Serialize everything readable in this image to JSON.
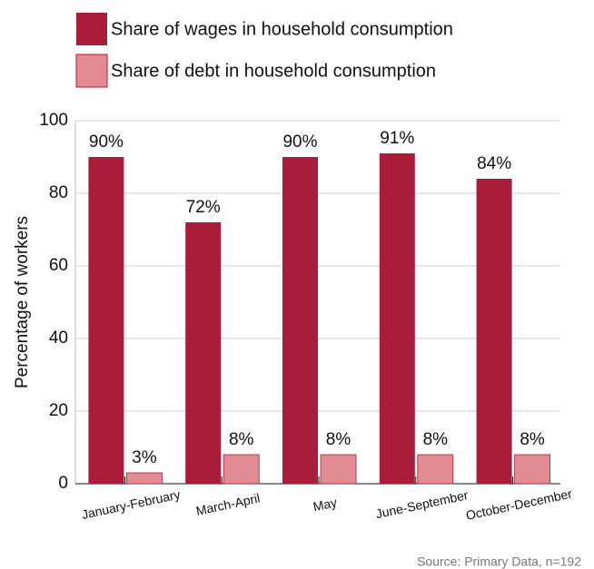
{
  "chart_data": {
    "type": "bar",
    "categories": [
      "January-February",
      "March-April",
      "May",
      "June-September",
      "October-December"
    ],
    "series": [
      {
        "name": "Share of wages in household consumption",
        "color": "#a91d3a",
        "values": [
          90,
          72,
          90,
          91,
          84
        ],
        "value_labels": [
          "90%",
          "72%",
          "90%",
          "91%",
          "84%"
        ]
      },
      {
        "name": "Share of debt in household consumption",
        "color": "#e38b92",
        "values": [
          3,
          8,
          8,
          8,
          8
        ],
        "value_labels": [
          "3%",
          "8%",
          "8%",
          "8%",
          "8%"
        ]
      }
    ],
    "ylabel": "Percentage of workers",
    "ylim": [
      0,
      100
    ],
    "yticks": [
      0,
      20,
      40,
      60,
      80,
      100
    ],
    "grid": true,
    "legend": "top-left",
    "source": "Source: Primary Data, n=192"
  }
}
